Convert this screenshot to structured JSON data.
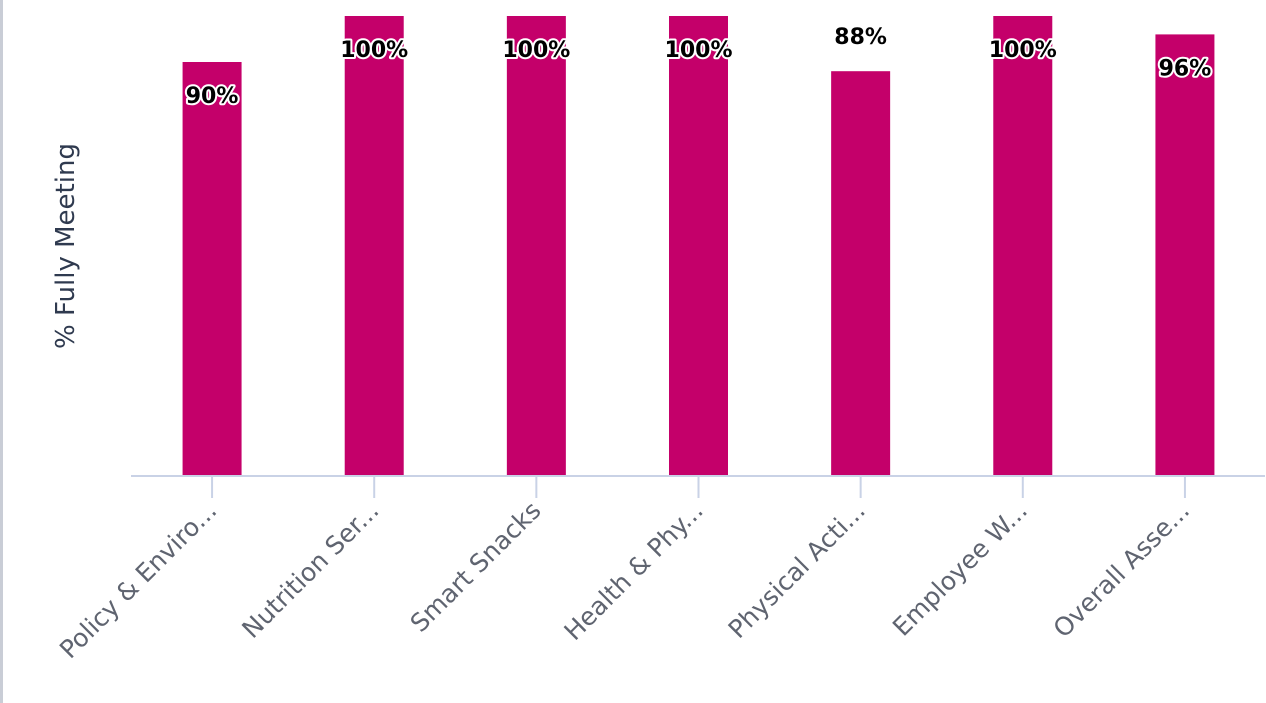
{
  "chart_data": {
    "type": "bar",
    "ylabel": "% Fully Meeting",
    "xlabel": "",
    "ylim": [
      0,
      100
    ],
    "categories": [
      "Policy & Enviro...",
      "Nutrition Ser...",
      "Smart Snacks",
      "Health & Phy...",
      "Physical Acti...",
      "Employee W...",
      "Overall Asse..."
    ],
    "values": [
      90,
      100,
      100,
      100,
      88,
      100,
      96
    ],
    "data_labels": [
      "90%",
      "100%",
      "100%",
      "100%",
      "88%",
      "100%",
      "96%"
    ],
    "bar_color": "#c4006a",
    "axis_color": "#c9d2e6",
    "grid": false
  }
}
